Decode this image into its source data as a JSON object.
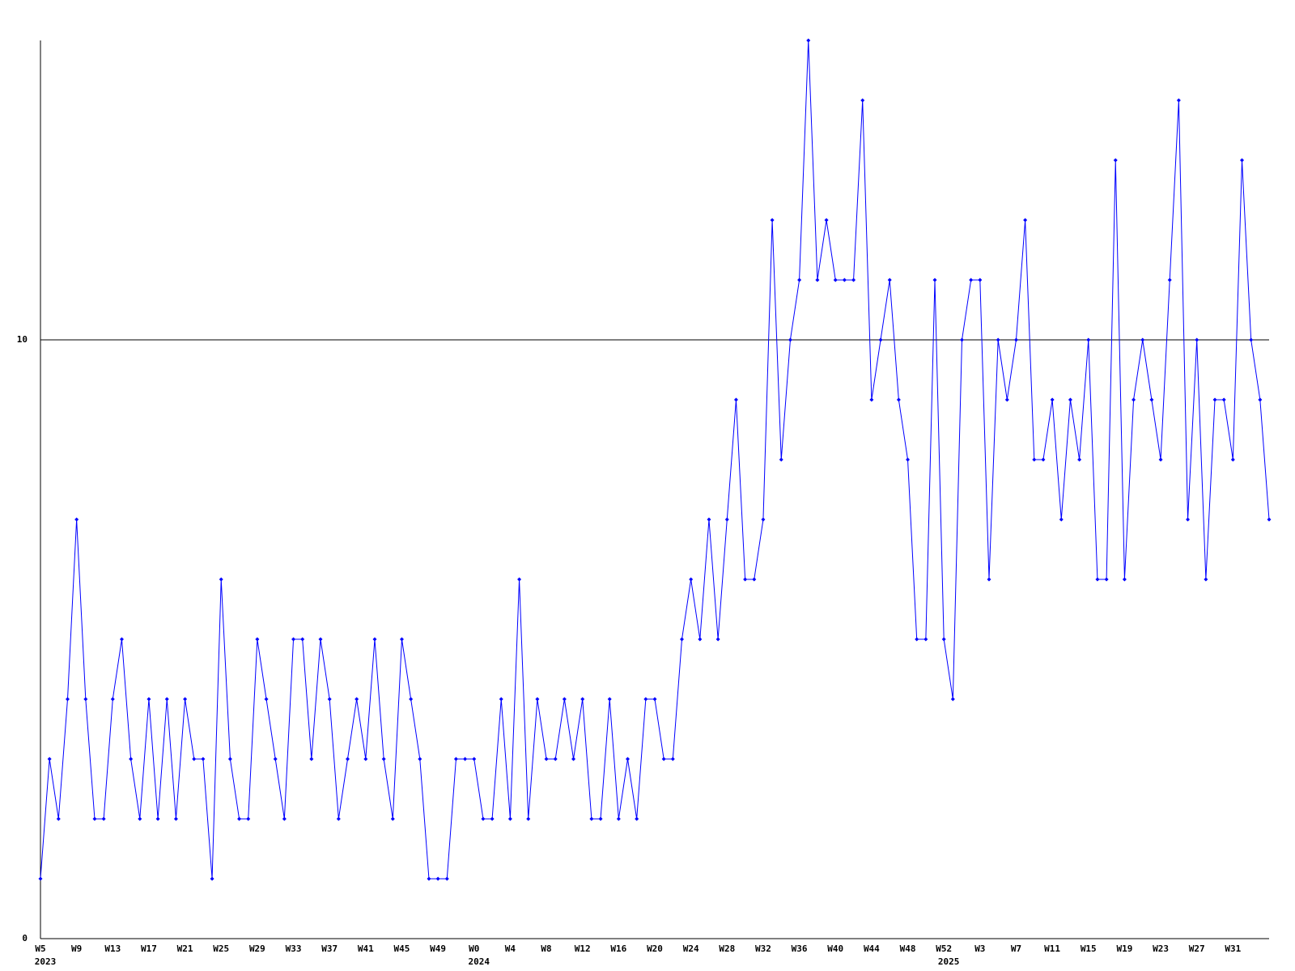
{
  "chart_data": {
    "type": "line",
    "categories": [
      "W5",
      null,
      null,
      null,
      "W9",
      null,
      null,
      null,
      "W13",
      null,
      null,
      null,
      "W17",
      null,
      null,
      null,
      "W21",
      null,
      null,
      null,
      "W25",
      null,
      null,
      null,
      "W29",
      null,
      null,
      null,
      "W33",
      null,
      null,
      null,
      "W37",
      null,
      null,
      null,
      "W41",
      null,
      null,
      null,
      "W45",
      null,
      null,
      null,
      "W49",
      null,
      null,
      null,
      "W0",
      null,
      null,
      null,
      "W4",
      null,
      null,
      null,
      "W8",
      null,
      null,
      null,
      "W12",
      null,
      null,
      null,
      "W16",
      null,
      null,
      null,
      "W20",
      null,
      null,
      null,
      "W24",
      null,
      null,
      null,
      "W28",
      null,
      null,
      null,
      "W32",
      null,
      null,
      null,
      "W36",
      null,
      null,
      null,
      "W40",
      null,
      null,
      null,
      "W44",
      null,
      null,
      null,
      "W48",
      null,
      null,
      null,
      "W52",
      null,
      null,
      null,
      "W3",
      null,
      null,
      null,
      "W7",
      null,
      null,
      null,
      "W11",
      null,
      null,
      null,
      "W15",
      null,
      null,
      null,
      "W19",
      null,
      null,
      null,
      "W23",
      null,
      null,
      null,
      "W27",
      null,
      null,
      null,
      "W31",
      null,
      null,
      null,
      null
    ],
    "years": [
      "2023",
      null,
      null,
      null,
      null,
      null,
      null,
      null,
      null,
      null,
      null,
      null,
      null,
      null,
      null,
      null,
      null,
      null,
      null,
      null,
      null,
      null,
      null,
      null,
      null,
      null,
      null,
      null,
      null,
      null,
      null,
      null,
      null,
      null,
      null,
      null,
      null,
      null,
      null,
      null,
      null,
      null,
      null,
      null,
      null,
      null,
      null,
      null,
      "2024",
      null,
      null,
      null,
      null,
      null,
      null,
      null,
      null,
      null,
      null,
      null,
      null,
      null,
      null,
      null,
      null,
      null,
      null,
      null,
      null,
      null,
      null,
      null,
      null,
      null,
      null,
      null,
      null,
      null,
      null,
      null,
      null,
      null,
      null,
      null,
      null,
      null,
      null,
      null,
      null,
      null,
      null,
      null,
      null,
      null,
      null,
      null,
      null,
      null,
      null,
      null,
      "2025",
      null,
      null,
      null,
      null,
      null,
      null,
      null,
      null,
      null,
      null,
      null,
      null,
      null,
      null,
      null,
      null,
      null,
      null,
      null,
      null,
      null,
      null,
      null,
      null,
      null,
      null,
      null,
      null,
      null,
      null,
      null,
      null,
      null,
      null,
      null,
      null
    ],
    "values": [
      1,
      3,
      2,
      4,
      7,
      4,
      2,
      2,
      4,
      5,
      3,
      2,
      4,
      2,
      4,
      2,
      4,
      3,
      3,
      1,
      6,
      3,
      2,
      2,
      5,
      4,
      3,
      2,
      5,
      5,
      3,
      5,
      4,
      2,
      3,
      4,
      3,
      5,
      3,
      2,
      5,
      4,
      3,
      1,
      1,
      1,
      3,
      3,
      3,
      2,
      2,
      4,
      2,
      6,
      2,
      4,
      3,
      3,
      4,
      3,
      4,
      2,
      2,
      4,
      2,
      3,
      2,
      4,
      4,
      3,
      3,
      5,
      6,
      5,
      7,
      5,
      7,
      9,
      6,
      6,
      7,
      12,
      8,
      10,
      11,
      15,
      11,
      12,
      11,
      11,
      11,
      14,
      9,
      10,
      11,
      9,
      8,
      5,
      5,
      11,
      5,
      4,
      10,
      11,
      11,
      6,
      10,
      9,
      10,
      12,
      8,
      8,
      9,
      7,
      9,
      8,
      10,
      6,
      6,
      13,
      6,
      9,
      10,
      9,
      8,
      11,
      14,
      7,
      10,
      6,
      9,
      9,
      8,
      13,
      10,
      9,
      7
    ],
    "color": "#0000ff",
    "ylim": [
      0,
      15
    ],
    "yticks": [
      0,
      10
    ],
    "grid": true
  }
}
